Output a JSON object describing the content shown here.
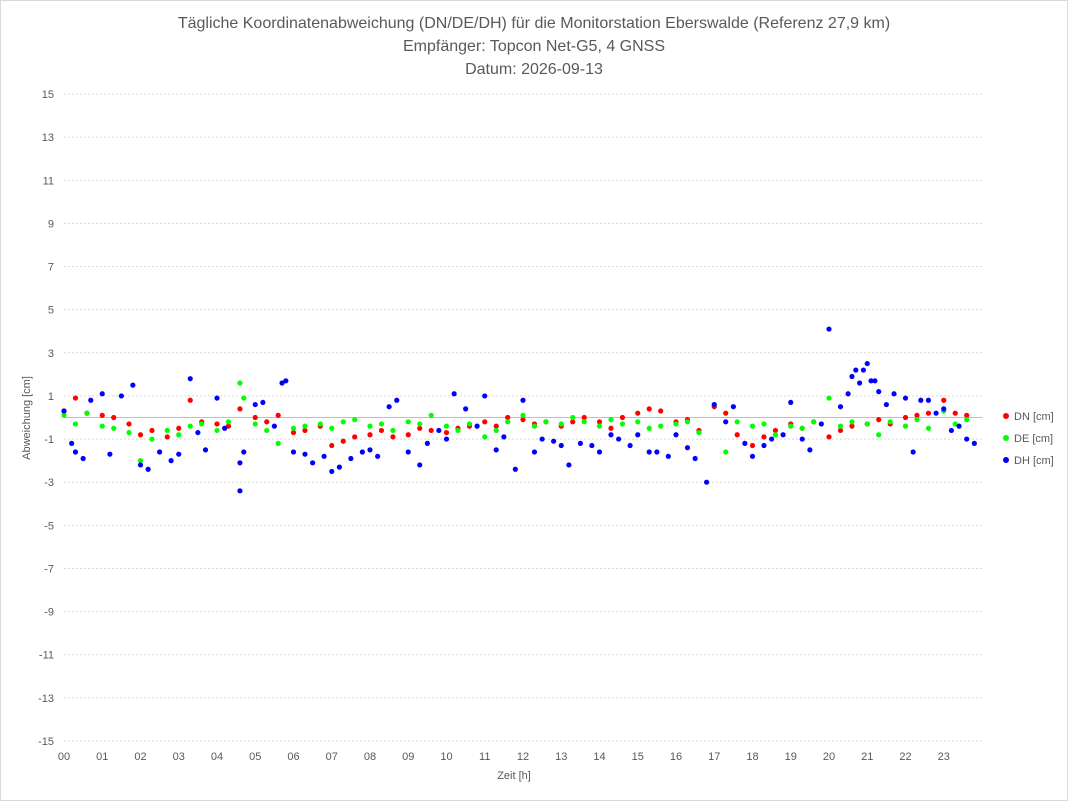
{
  "chart_data": {
    "type": "scatter",
    "title_lines": [
      "Tägliche Koordinatenabweichung (DN/DE/DH) für die Monitorstation Eberswalde (Referenz 27,9 km)",
      "Empfänger: Topcon Net-G5, 4 GNSS",
      "Datum: 2026-09-13"
    ],
    "xlabel": "Zeit [h]",
    "ylabel": "Abweichung [cm]",
    "xlim": [
      0,
      24
    ],
    "ylim": [
      -15,
      15
    ],
    "x_ticks": [
      "00",
      "01",
      "02",
      "03",
      "04",
      "05",
      "06",
      "07",
      "08",
      "09",
      "10",
      "11",
      "12",
      "13",
      "14",
      "15",
      "16",
      "17",
      "18",
      "19",
      "20",
      "21",
      "22",
      "23"
    ],
    "y_ticks": [
      15,
      13,
      11,
      9,
      7,
      5,
      3,
      1,
      -1,
      -3,
      -5,
      -7,
      -9,
      -11,
      -13,
      -15
    ],
    "grid": "horizontal dotted",
    "legend_position": "right",
    "series": [
      {
        "name": "DN [cm]",
        "color": "#ff0000",
        "points": [
          [
            0.0,
            0.3
          ],
          [
            0.3,
            0.9
          ],
          [
            0.6,
            0.2
          ],
          [
            1.0,
            0.1
          ],
          [
            1.3,
            0.0
          ],
          [
            1.7,
            -0.3
          ],
          [
            2.0,
            -0.8
          ],
          [
            2.3,
            -0.6
          ],
          [
            2.7,
            -0.9
          ],
          [
            3.0,
            -0.5
          ],
          [
            3.3,
            0.8
          ],
          [
            3.6,
            -0.2
          ],
          [
            4.0,
            -0.3
          ],
          [
            4.3,
            -0.4
          ],
          [
            4.6,
            0.4
          ],
          [
            5.0,
            0.0
          ],
          [
            5.3,
            -0.2
          ],
          [
            5.6,
            0.1
          ],
          [
            6.0,
            -0.7
          ],
          [
            6.3,
            -0.6
          ],
          [
            6.7,
            -0.4
          ],
          [
            7.0,
            -1.3
          ],
          [
            7.3,
            -1.1
          ],
          [
            7.6,
            -0.9
          ],
          [
            8.0,
            -0.8
          ],
          [
            8.3,
            -0.6
          ],
          [
            8.6,
            -0.9
          ],
          [
            9.0,
            -0.8
          ],
          [
            9.3,
            -0.5
          ],
          [
            9.6,
            -0.6
          ],
          [
            10.0,
            -0.7
          ],
          [
            10.3,
            -0.5
          ],
          [
            10.6,
            -0.4
          ],
          [
            11.0,
            -0.2
          ],
          [
            11.3,
            -0.4
          ],
          [
            11.6,
            0.0
          ],
          [
            12.0,
            -0.1
          ],
          [
            12.3,
            -0.3
          ],
          [
            12.6,
            -0.2
          ],
          [
            13.0,
            -0.4
          ],
          [
            13.3,
            -0.2
          ],
          [
            13.6,
            0.0
          ],
          [
            14.0,
            -0.2
          ],
          [
            14.3,
            -0.5
          ],
          [
            14.6,
            0.0
          ],
          [
            15.0,
            0.2
          ],
          [
            15.3,
            0.4
          ],
          [
            15.6,
            0.3
          ],
          [
            16.0,
            -0.2
          ],
          [
            16.3,
            -0.1
          ],
          [
            16.6,
            -0.6
          ],
          [
            17.0,
            0.5
          ],
          [
            17.3,
            0.2
          ],
          [
            17.6,
            -0.8
          ],
          [
            18.0,
            -1.3
          ],
          [
            18.3,
            -0.9
          ],
          [
            18.6,
            -0.6
          ],
          [
            19.0,
            -0.3
          ],
          [
            19.3,
            -0.5
          ],
          [
            19.6,
            -0.2
          ],
          [
            20.0,
            -0.9
          ],
          [
            20.3,
            -0.6
          ],
          [
            20.6,
            -0.4
          ],
          [
            21.0,
            -0.3
          ],
          [
            21.3,
            -0.1
          ],
          [
            21.6,
            -0.3
          ],
          [
            22.0,
            0.0
          ],
          [
            22.3,
            0.1
          ],
          [
            22.6,
            0.2
          ],
          [
            23.0,
            0.8
          ],
          [
            23.3,
            0.2
          ],
          [
            23.6,
            0.1
          ]
        ]
      },
      {
        "name": "DE [cm]",
        "color": "#00ff00",
        "points": [
          [
            0.0,
            0.1
          ],
          [
            0.3,
            -0.3
          ],
          [
            0.6,
            0.2
          ],
          [
            1.0,
            -0.4
          ],
          [
            1.3,
            -0.5
          ],
          [
            1.7,
            -0.7
          ],
          [
            2.0,
            -2.0
          ],
          [
            2.3,
            -1.0
          ],
          [
            2.7,
            -0.6
          ],
          [
            3.0,
            -0.8
          ],
          [
            3.3,
            -0.4
          ],
          [
            3.6,
            -0.3
          ],
          [
            4.0,
            -0.6
          ],
          [
            4.3,
            -0.2
          ],
          [
            4.6,
            1.6
          ],
          [
            4.7,
            0.9
          ],
          [
            5.0,
            -0.3
          ],
          [
            5.3,
            -0.6
          ],
          [
            5.6,
            -1.2
          ],
          [
            6.0,
            -0.5
          ],
          [
            6.3,
            -0.4
          ],
          [
            6.7,
            -0.3
          ],
          [
            7.0,
            -0.5
          ],
          [
            7.3,
            -0.2
          ],
          [
            7.6,
            -0.1
          ],
          [
            8.0,
            -0.4
          ],
          [
            8.3,
            -0.3
          ],
          [
            8.6,
            -0.6
          ],
          [
            9.0,
            -0.2
          ],
          [
            9.3,
            -0.3
          ],
          [
            9.6,
            0.1
          ],
          [
            10.0,
            -0.4
          ],
          [
            10.3,
            -0.6
          ],
          [
            10.6,
            -0.3
          ],
          [
            11.0,
            -0.9
          ],
          [
            11.3,
            -0.6
          ],
          [
            11.6,
            -0.2
          ],
          [
            12.0,
            0.1
          ],
          [
            12.3,
            -0.4
          ],
          [
            12.6,
            -0.2
          ],
          [
            13.0,
            -0.3
          ],
          [
            13.3,
            0.0
          ],
          [
            13.6,
            -0.2
          ],
          [
            14.0,
            -0.4
          ],
          [
            14.3,
            -0.1
          ],
          [
            14.6,
            -0.3
          ],
          [
            15.0,
            -0.2
          ],
          [
            15.3,
            -0.5
          ],
          [
            15.6,
            -0.4
          ],
          [
            16.0,
            -0.3
          ],
          [
            16.3,
            -0.2
          ],
          [
            16.6,
            -0.7
          ],
          [
            17.0,
            0.6
          ],
          [
            17.3,
            -1.6
          ],
          [
            17.6,
            -0.2
          ],
          [
            18.0,
            -0.4
          ],
          [
            18.3,
            -0.3
          ],
          [
            18.6,
            -0.8
          ],
          [
            19.0,
            -0.4
          ],
          [
            19.3,
            -0.5
          ],
          [
            19.6,
            -0.2
          ],
          [
            20.0,
            0.9
          ],
          [
            20.3,
            -0.4
          ],
          [
            20.6,
            -0.2
          ],
          [
            21.0,
            -0.3
          ],
          [
            21.3,
            -0.8
          ],
          [
            21.6,
            -0.2
          ],
          [
            22.0,
            -0.4
          ],
          [
            22.3,
            -0.1
          ],
          [
            22.6,
            -0.5
          ],
          [
            23.0,
            0.3
          ],
          [
            23.3,
            -0.3
          ],
          [
            23.6,
            -0.1
          ]
        ]
      },
      {
        "name": "DH [cm]",
        "color": "#0000ff",
        "points": [
          [
            0.0,
            0.3
          ],
          [
            0.2,
            -1.2
          ],
          [
            0.3,
            -1.6
          ],
          [
            0.5,
            -1.9
          ],
          [
            0.7,
            0.8
          ],
          [
            1.0,
            1.1
          ],
          [
            1.2,
            -1.7
          ],
          [
            1.5,
            1.0
          ],
          [
            1.8,
            1.5
          ],
          [
            2.0,
            -2.2
          ],
          [
            2.2,
            -2.4
          ],
          [
            2.5,
            -1.6
          ],
          [
            2.8,
            -2.0
          ],
          [
            3.0,
            -1.7
          ],
          [
            3.3,
            1.8
          ],
          [
            3.5,
            -0.7
          ],
          [
            3.7,
            -1.5
          ],
          [
            4.0,
            0.9
          ],
          [
            4.2,
            -0.5
          ],
          [
            4.6,
            -3.4
          ],
          [
            4.6,
            -2.1
          ],
          [
            4.7,
            -1.6
          ],
          [
            5.0,
            0.6
          ],
          [
            5.2,
            0.7
          ],
          [
            5.5,
            -0.4
          ],
          [
            5.7,
            1.6
          ],
          [
            5.8,
            1.7
          ],
          [
            6.0,
            -1.6
          ],
          [
            6.3,
            -1.7
          ],
          [
            6.5,
            -2.1
          ],
          [
            6.8,
            -1.8
          ],
          [
            7.0,
            -2.5
          ],
          [
            7.2,
            -2.3
          ],
          [
            7.5,
            -1.9
          ],
          [
            7.8,
            -1.6
          ],
          [
            8.0,
            -1.5
          ],
          [
            8.2,
            -1.8
          ],
          [
            8.5,
            0.5
          ],
          [
            8.7,
            0.8
          ],
          [
            9.0,
            -1.6
          ],
          [
            9.3,
            -2.2
          ],
          [
            9.5,
            -1.2
          ],
          [
            9.8,
            -0.6
          ],
          [
            10.0,
            -1.0
          ],
          [
            10.2,
            1.1
          ],
          [
            10.5,
            0.4
          ],
          [
            10.8,
            -0.4
          ],
          [
            11.0,
            1.0
          ],
          [
            11.3,
            -1.5
          ],
          [
            11.5,
            -0.9
          ],
          [
            11.8,
            -2.4
          ],
          [
            12.0,
            0.8
          ],
          [
            12.3,
            -1.6
          ],
          [
            12.5,
            -1.0
          ],
          [
            12.8,
            -1.1
          ],
          [
            13.0,
            -1.3
          ],
          [
            13.2,
            -2.2
          ],
          [
            13.5,
            -1.2
          ],
          [
            13.8,
            -1.3
          ],
          [
            14.0,
            -1.6
          ],
          [
            14.3,
            -0.8
          ],
          [
            14.5,
            -1.0
          ],
          [
            14.8,
            -1.3
          ],
          [
            15.0,
            -0.8
          ],
          [
            15.3,
            -1.6
          ],
          [
            15.5,
            -1.6
          ],
          [
            15.8,
            -1.8
          ],
          [
            16.0,
            -0.8
          ],
          [
            16.3,
            -1.4
          ],
          [
            16.5,
            -1.9
          ],
          [
            16.8,
            -3.0
          ],
          [
            17.0,
            0.6
          ],
          [
            17.3,
            -0.2
          ],
          [
            17.5,
            0.5
          ],
          [
            17.8,
            -1.2
          ],
          [
            18.0,
            -1.8
          ],
          [
            18.3,
            -1.3
          ],
          [
            18.5,
            -1.0
          ],
          [
            18.8,
            -0.8
          ],
          [
            19.0,
            0.7
          ],
          [
            19.3,
            -1.0
          ],
          [
            19.5,
            -1.5
          ],
          [
            19.8,
            -0.3
          ],
          [
            20.0,
            4.1
          ],
          [
            20.3,
            0.5
          ],
          [
            20.5,
            1.1
          ],
          [
            20.6,
            1.9
          ],
          [
            20.7,
            2.2
          ],
          [
            20.8,
            1.6
          ],
          [
            20.9,
            2.2
          ],
          [
            21.0,
            2.5
          ],
          [
            21.1,
            1.7
          ],
          [
            21.2,
            1.7
          ],
          [
            21.3,
            1.2
          ],
          [
            21.5,
            0.6
          ],
          [
            21.7,
            1.1
          ],
          [
            22.0,
            0.9
          ],
          [
            22.2,
            -1.6
          ],
          [
            22.4,
            0.8
          ],
          [
            22.6,
            0.8
          ],
          [
            22.8,
            0.2
          ],
          [
            23.0,
            0.4
          ],
          [
            23.2,
            -0.6
          ],
          [
            23.4,
            -0.4
          ],
          [
            23.6,
            -1.0
          ],
          [
            23.8,
            -1.2
          ]
        ]
      }
    ]
  }
}
